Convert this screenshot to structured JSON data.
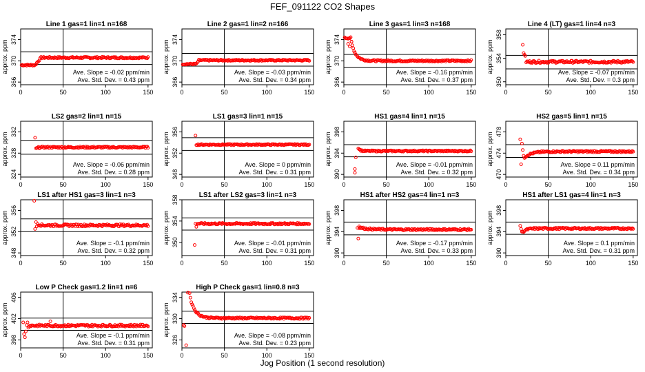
{
  "figure": {
    "title": "FEF_091122  CO2 Shapes",
    "xlabel": "Jog Position (1 second resolution)",
    "point_color": "#ff0000"
  },
  "chart_data": [
    {
      "type": "scatter",
      "title": "Line 1 gas=1 lin=1 n=168",
      "ylabel": "approx. ppm",
      "xlim": [
        0,
        155
      ],
      "ylim": [
        365.5,
        376
      ],
      "yticks": [
        366,
        370,
        374
      ],
      "xticks": [
        0,
        50,
        100,
        150
      ],
      "vline": 50,
      "hlines": [
        369.3,
        371.7
      ],
      "profile": {
        "start": 369.2,
        "settle": 370.6,
        "pre": 17,
        "rise": 24,
        "tau": 2,
        "noise": 0.15
      },
      "outliers": [],
      "slope_text": "Ave. Slope = -0.02  ppm/min",
      "std_text": "Ave. Std. Dev. =  0.43  ppm"
    },
    {
      "type": "scatter",
      "title": "Line 2 gas=1 lin=2 n=166",
      "ylabel": "approx. ppm",
      "xlim": [
        0,
        155
      ],
      "ylim": [
        365.5,
        376
      ],
      "yticks": [
        366,
        370,
        374
      ],
      "xticks": [
        0,
        50,
        100,
        150
      ],
      "vline": 50,
      "hlines": [
        369.0,
        371.4
      ],
      "profile": {
        "start": 369.4,
        "settle": 370.1,
        "pre": 17,
        "rise": 20,
        "tau": 2,
        "noise": 0.12
      },
      "outliers": [],
      "slope_text": "Ave. Slope = -0.03  ppm/min",
      "std_text": "Ave. Std. Dev. =  0.34  ppm"
    },
    {
      "type": "scatter",
      "title": "Line 3 gas=1 lin=3 n=168",
      "ylabel": "approx. ppm",
      "xlim": [
        0,
        155
      ],
      "ylim": [
        365.5,
        376
      ],
      "yticks": [
        366,
        370,
        374
      ],
      "xticks": [
        0,
        50,
        100,
        150
      ],
      "vline": 50,
      "hlines": [
        368.8,
        371.2
      ],
      "profile": {
        "start": 374.3,
        "settle": 370.0,
        "pre": 8,
        "rise": 0,
        "tau": 5,
        "noise": 0.15
      },
      "outliers": [
        [
          5,
          373.2
        ],
        [
          7,
          372.7
        ],
        [
          9,
          373.6
        ]
      ],
      "slope_text": "Ave. Slope = -0.16  ppm/min",
      "std_text": "Ave. Std. Dev. =  0.37  ppm"
    },
    {
      "type": "scatter",
      "title": "Line 4 (LT) gas=1 lin=4 n=3",
      "ylabel": "approx. ppm",
      "xlim": [
        0,
        155
      ],
      "ylim": [
        349.5,
        359
      ],
      "yticks": [
        350,
        354,
        358
      ],
      "xticks": [
        0,
        50,
        100,
        150
      ],
      "vline": 50,
      "hlines": [
        352.2,
        354.5
      ],
      "profile": {
        "start": 353.4,
        "settle": 353.4,
        "pre": 0,
        "rise": 0,
        "tau": 2,
        "noise": 0.2,
        "xstart": 24
      },
      "outliers": [
        [
          20,
          356.3
        ],
        [
          21,
          354.9
        ],
        [
          22,
          354.6
        ],
        [
          23,
          354.4
        ]
      ],
      "slope_text": "Ave. Slope = -0.07  ppm/min",
      "std_text": "Ave. Std. Dev. =  0.3  ppm"
    },
    {
      "type": "scatter",
      "title": "LS2 gas=2 lin=1 n=15",
      "ylabel": "approx. ppm",
      "xlim": [
        0,
        155
      ],
      "ylim": [
        323.5,
        334
      ],
      "yticks": [
        324,
        328,
        332
      ],
      "xticks": [
        0,
        50,
        100,
        150
      ],
      "vline": 50,
      "hlines": [
        327.8,
        330.4
      ],
      "profile": {
        "start": 328.8,
        "settle": 329.1,
        "pre": 0,
        "rise": 0,
        "tau": 2,
        "noise": 0.15,
        "xstart": 18
      },
      "outliers": [
        [
          17,
          330.9
        ]
      ],
      "slope_text": "Ave. Slope = -0.06  ppm/min",
      "std_text": "Ave. Std. Dev. =  0.28  ppm"
    },
    {
      "type": "scatter",
      "title": "LS1 gas=3 lin=1 n=15",
      "ylabel": "approx. ppm",
      "xlim": [
        0,
        155
      ],
      "ylim": [
        347.5,
        358
      ],
      "yticks": [
        348,
        352,
        356
      ],
      "xticks": [
        0,
        50,
        100,
        150
      ],
      "vline": 50,
      "hlines": [
        352.5,
        354.9
      ],
      "profile": {
        "start": 353.6,
        "settle": 353.6,
        "pre": 0,
        "rise": 0,
        "tau": 2,
        "noise": 0.12,
        "xstart": 17
      },
      "outliers": [
        [
          16,
          355.3
        ]
      ],
      "slope_text": "Ave. Slope = 0  ppm/min",
      "std_text": "Ave. Std. Dev. =  0.31  ppm"
    },
    {
      "type": "scatter",
      "title": "HS1 gas=4 lin=1 n=15",
      "ylabel": "approx. ppm",
      "xlim": [
        0,
        155
      ],
      "ylim": [
        389.5,
        400
      ],
      "yticks": [
        390,
        394,
        398
      ],
      "xticks": [
        0,
        50,
        100,
        150
      ],
      "vline": 50,
      "hlines": [
        393.3,
        395.6
      ],
      "profile": {
        "start": 395.0,
        "settle": 394.4,
        "pre": 0,
        "rise": 0,
        "tau": 2,
        "noise": 0.12,
        "xstart": 17
      },
      "outliers": [
        [
          13,
          390.3
        ],
        [
          13,
          391.0
        ],
        [
          14,
          393.2
        ]
      ],
      "slope_text": "Ave. Slope = -0.01  ppm/min",
      "std_text": "Ave. Std. Dev. =  0.32  ppm"
    },
    {
      "type": "scatter",
      "title": "HS2 gas=5 lin=1 n=15",
      "ylabel": "approx. ppm",
      "xlim": [
        0,
        155
      ],
      "ylim": [
        469.5,
        480
      ],
      "yticks": [
        470,
        474,
        478
      ],
      "xticks": [
        0,
        50,
        100,
        150
      ],
      "vline": 50,
      "hlines": [
        473.2,
        475.6
      ],
      "profile": {
        "start": 473.2,
        "settle": 474.3,
        "pre": 0,
        "rise": 0,
        "tau": 8,
        "noise": 0.15,
        "xstart": 22
      },
      "outliers": [
        [
          17,
          476.6
        ],
        [
          18,
          471.9
        ],
        [
          19,
          475.8
        ],
        [
          20,
          474.6
        ],
        [
          21,
          473.5
        ]
      ],
      "slope_text": "Ave. Slope = 0.11  ppm/min",
      "std_text": "Ave. Std. Dev. =  0.34  ppm"
    },
    {
      "type": "scatter",
      "title": "LS1 after HS1 gas=3 lin=1 n=3",
      "ylabel": "approx. ppm",
      "xlim": [
        0,
        155
      ],
      "ylim": [
        347.5,
        358
      ],
      "yticks": [
        348,
        352,
        356
      ],
      "xticks": [
        0,
        50,
        100,
        150
      ],
      "vline": 50,
      "hlines": [
        352.0,
        354.4
      ],
      "profile": {
        "start": 353.5,
        "settle": 353.2,
        "pre": 0,
        "rise": 0,
        "tau": 2,
        "noise": 0.2,
        "xstart": 20
      },
      "outliers": [
        [
          16,
          357.8
        ],
        [
          17,
          352.5
        ],
        [
          18,
          353.8
        ],
        [
          19,
          353.0
        ]
      ],
      "slope_text": "Ave. Slope = -0.1  ppm/min",
      "std_text": "Ave. Std. Dev. =  0.32  ppm"
    },
    {
      "type": "scatter",
      "title": "LS1 after LS2 gas=3 lin=1 n=3",
      "ylabel": "approx. ppm",
      "xlim": [
        0,
        155
      ],
      "ylim": [
        347.5,
        358
      ],
      "yticks": [
        350,
        354,
        358
      ],
      "xticks": [
        0,
        50,
        100,
        150
      ],
      "vline": 50,
      "hlines": [
        352.3,
        354.6
      ],
      "profile": {
        "start": 353.5,
        "settle": 353.5,
        "pre": 0,
        "rise": 0,
        "tau": 2,
        "noise": 0.15,
        "xstart": 18
      },
      "outliers": [
        [
          15,
          349.5
        ],
        [
          16,
          353.5
        ],
        [
          17,
          352.9
        ]
      ],
      "slope_text": "Ave. Slope = -0.01  ppm/min",
      "std_text": "Ave. Std. Dev. =  0.31  ppm"
    },
    {
      "type": "scatter",
      "title": "HS1 after HS2 gas=4 lin=1 n=3",
      "ylabel": "approx. ppm",
      "xlim": [
        0,
        155
      ],
      "ylim": [
        389.5,
        400
      ],
      "yticks": [
        390,
        394,
        398
      ],
      "xticks": [
        0,
        50,
        100,
        150
      ],
      "vline": 50,
      "hlines": [
        393.4,
        395.8
      ],
      "profile": {
        "start": 394.8,
        "settle": 394.4,
        "pre": 0,
        "rise": 0,
        "tau": 10,
        "noise": 0.15,
        "xstart": 18
      },
      "outliers": [
        [
          16,
          394.7
        ],
        [
          17,
          392.7
        ],
        [
          18,
          395.0
        ]
      ],
      "slope_text": "Ave. Slope = -0.17  ppm/min",
      "std_text": "Ave. Std. Dev. =  0.33  ppm"
    },
    {
      "type": "scatter",
      "title": "HS1 after LS1 gas=4 lin=1 n=3",
      "ylabel": "approx. ppm",
      "xlim": [
        0,
        155
      ],
      "ylim": [
        389.5,
        400
      ],
      "yticks": [
        390,
        394,
        398
      ],
      "xticks": [
        0,
        50,
        100,
        150
      ],
      "vline": 50,
      "hlines": [
        393.5,
        395.8
      ],
      "profile": {
        "start": 393.9,
        "settle": 394.6,
        "pre": 0,
        "rise": 0,
        "tau": 4,
        "noise": 0.15,
        "xstart": 20
      },
      "outliers": [
        [
          17,
          395.1
        ],
        [
          18,
          394.5
        ],
        [
          19,
          394.0
        ]
      ],
      "slope_text": "Ave. Slope = 0.1  ppm/min",
      "std_text": "Ave. Std. Dev. =  0.31  ppm"
    },
    {
      "type": "scatter",
      "title": "Low P Check gas=1.2 lin=1 n=6",
      "ylabel": "approx. ppm",
      "xlim": [
        0,
        155
      ],
      "ylim": [
        396.5,
        407
      ],
      "yticks": [
        398,
        402,
        406
      ],
      "xticks": [
        0,
        50,
        100,
        150
      ],
      "vline": 50,
      "hlines": [
        399.8,
        402.1
      ],
      "profile": {
        "start": 400.7,
        "settle": 400.7,
        "pre": 0,
        "rise": 0,
        "tau": 2,
        "noise": 0.2,
        "xstart": 10
      },
      "outliers": [
        [
          3,
          401.3
        ],
        [
          4,
          399.1
        ],
        [
          5,
          398.5
        ],
        [
          6,
          399.6
        ],
        [
          7,
          400.8
        ],
        [
          8,
          401.3
        ],
        [
          9,
          400.3
        ],
        [
          35,
          401.5
        ]
      ],
      "slope_text": "Ave. Slope = -0.1  ppm/min",
      "std_text": "Ave. Std. Dev. =  0.31  ppm"
    },
    {
      "type": "scatter",
      "title": "High P Check gas=1 lin=0.8 n=3",
      "ylabel": "approx. ppm",
      "xlim": [
        0,
        155
      ],
      "ylim": [
        324.5,
        335
      ],
      "yticks": [
        326,
        330,
        334
      ],
      "xticks": [
        0,
        50,
        100,
        150
      ],
      "vline": 50,
      "hlines": [
        329.1,
        331.4
      ],
      "profile": {
        "start": 333.8,
        "settle": 330.1,
        "pre": 0,
        "rise": 0,
        "tau": 6,
        "noise": 0.15,
        "xstart": 10
      },
      "outliers": [
        [
          2,
          328.8
        ],
        [
          3,
          328.6
        ],
        [
          5,
          325.0
        ],
        [
          7,
          334.9
        ],
        [
          9,
          334.8
        ]
      ],
      "slope_text": "Ave. Slope = -0.08  ppm/min",
      "std_text": "Ave. Std. Dev. =  0.23  ppm"
    }
  ]
}
